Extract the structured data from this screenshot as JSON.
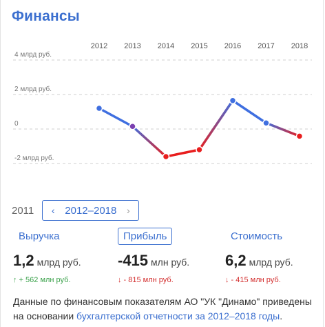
{
  "title": "Финансы",
  "chart_data": {
    "type": "line",
    "categories": [
      "2012",
      "2013",
      "2014",
      "2015",
      "2016",
      "2017",
      "2018"
    ],
    "values": [
      1.2,
      0.15,
      -1.6,
      -1.2,
      1.65,
      0.35,
      -0.415
    ],
    "yticks": [
      "4 млрд руб.",
      "2 млрд руб.",
      "0",
      "-2 млрд руб."
    ],
    "ytick_values": [
      4,
      2,
      0,
      -2
    ],
    "ylim": [
      -2.5,
      4.2
    ],
    "colors": {
      "positive": "#3f6fe0",
      "negative": "#e81e1e",
      "grid": "#cfcfcf"
    }
  },
  "nav": {
    "prev_year": "2011",
    "range": "2012–2018",
    "prev_arrow": "‹",
    "next_arrow": "›"
  },
  "metrics": [
    {
      "label": "Выручка",
      "value": "1,2",
      "unit": "млрд руб.",
      "delta": "↑ + 562 млн руб.",
      "trend": "up"
    },
    {
      "label": "Прибыль",
      "value": "-415",
      "unit": "млн руб.",
      "delta": "↓ - 815 млн руб.",
      "trend": "down"
    },
    {
      "label": "Стоимость",
      "value": "6,2",
      "unit": "млрд руб.",
      "delta": "↓ - 415 млн руб.",
      "trend": "down"
    }
  ],
  "note": {
    "text": "Данные по финансовым показателям АО \"УК \"Динамо\" приведены на основании ",
    "link": "бухгалтерской отчетности за 2012–2018 годы",
    "end": "."
  }
}
